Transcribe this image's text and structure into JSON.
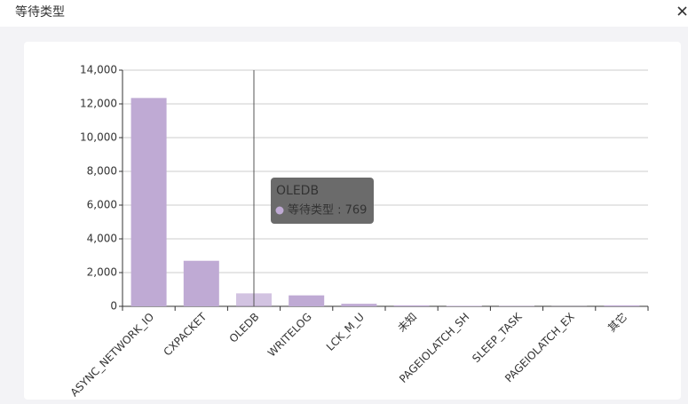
{
  "chart_data": {
    "type": "bar",
    "title": "等待类型",
    "categories": [
      "ASYNC_NETWORK_IO",
      "CXPACKET",
      "OLEDB",
      "WRITELOG",
      "LCK_M_U",
      "未知",
      "PAGEIOLATCH_SH",
      "SLEEP_TASK",
      "PAGEIOLATCH_EX",
      "其它"
    ],
    "series": [
      {
        "name": "等待类型",
        "color": "#bfaad4",
        "values": [
          12350,
          2700,
          769,
          650,
          150,
          60,
          30,
          20,
          10,
          60
        ]
      }
    ],
    "ylim": [
      0,
      14000
    ],
    "yticks": [
      0,
      {
        "value": 2000,
        "label": "2,000"
      },
      {
        "value": 4000,
        "label": "4,000"
      },
      {
        "value": 6000,
        "label": "6,000"
      },
      {
        "value": 8000,
        "label": "8,000"
      },
      {
        "value": 10000,
        "label": "10,000"
      },
      {
        "value": 12000,
        "label": "12,000"
      },
      {
        "value": 14000,
        "label": "14,000"
      }
    ],
    "grid": true,
    "tooltip": {
      "index": 2,
      "title": "OLEDB",
      "text": "等待类型 : 769"
    }
  }
}
